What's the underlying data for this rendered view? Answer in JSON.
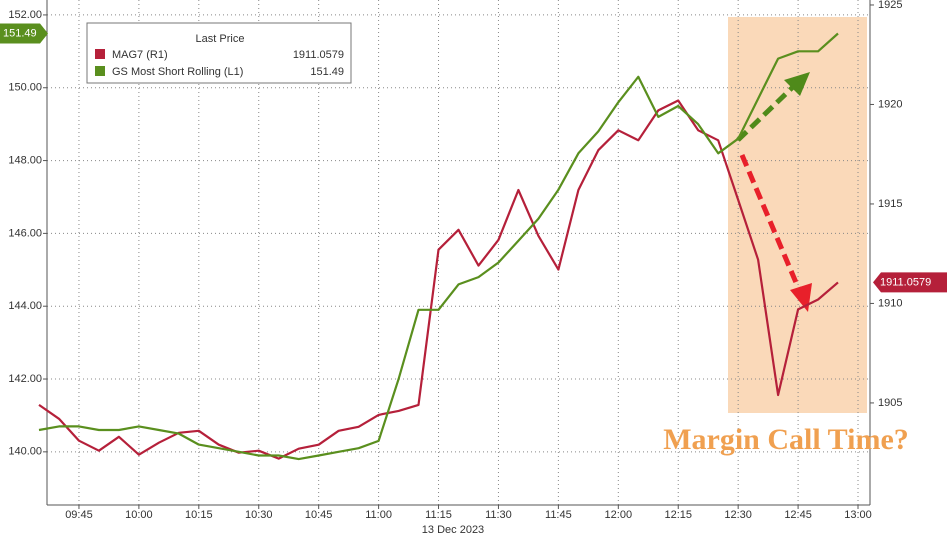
{
  "chart_data": {
    "type": "line",
    "x": [
      "09:35",
      "09:40",
      "09:45",
      "09:50",
      "09:55",
      "10:00",
      "10:05",
      "10:10",
      "10:15",
      "10:20",
      "10:25",
      "10:30",
      "10:35",
      "10:40",
      "10:45",
      "10:50",
      "10:55",
      "11:00",
      "11:05",
      "11:10",
      "11:15",
      "11:20",
      "11:25",
      "11:30",
      "11:35",
      "11:40",
      "11:45",
      "11:50",
      "11:55",
      "12:00",
      "12:05",
      "12:10",
      "12:15",
      "12:20",
      "12:25",
      "12:30",
      "12:35",
      "12:40",
      "12:45",
      "12:50",
      "12:55"
    ],
    "xlabel": "13 Dec 2023",
    "xticks": [
      "09:45",
      "10:00",
      "10:15",
      "10:30",
      "10:45",
      "11:00",
      "11:15",
      "11:30",
      "11:45",
      "12:00",
      "12:15",
      "12:30",
      "12:45",
      "13:00"
    ],
    "xlim": [
      "09:37",
      "13:03"
    ],
    "legend_title": "Last Price",
    "annotation": "Margin Call Time?",
    "series": [
      {
        "name": "MAG7 (R1)",
        "color": "#b5203a",
        "axis": "y2",
        "values": [
          1904.9,
          1904.2,
          1903.1,
          1902.6,
          1903.3,
          1902.4,
          1903.0,
          1903.5,
          1903.6,
          1902.9,
          1902.5,
          1902.6,
          1902.2,
          1902.7,
          1902.9,
          1903.6,
          1903.8,
          1904.4,
          1904.6,
          1904.9,
          1912.7,
          1913.7,
          1911.9,
          1913.2,
          1915.7,
          1913.4,
          1911.7,
          1915.7,
          1917.7,
          1918.7,
          1918.2,
          1919.7,
          1920.2,
          1918.7,
          1918.2,
          1915.2,
          1912.2,
          1905.4,
          1909.7,
          1910.2,
          1911.0579
        ]
      },
      {
        "name": "GS Most Short Rolling (L1)",
        "color": "#5a8f1e",
        "axis": "y",
        "values": [
          140.6,
          140.7,
          140.7,
          140.6,
          140.6,
          140.7,
          140.6,
          140.5,
          140.2,
          140.1,
          140.0,
          139.9,
          139.9,
          139.8,
          139.9,
          140.0,
          140.1,
          140.3,
          142.0,
          143.9,
          143.9,
          144.6,
          144.8,
          145.2,
          145.8,
          146.4,
          147.2,
          148.2,
          148.8,
          149.6,
          150.3,
          149.2,
          149.5,
          149.0,
          148.2,
          148.6,
          149.7,
          150.8,
          151.0,
          151.0,
          151.49
        ]
      }
    ],
    "ylim": [
      138.54,
      152.41
    ],
    "yticks": [
      {
        "value": 140,
        "label": "140.00"
      },
      {
        "value": 142,
        "label": "142.00"
      },
      {
        "value": 144,
        "label": "144.00"
      },
      {
        "value": 146,
        "label": "146.00"
      },
      {
        "value": 148,
        "label": "148.00"
      },
      {
        "value": 150,
        "label": "150.00"
      },
      {
        "value": 152,
        "label": "152.00"
      }
    ],
    "y2lim": [
      1899.87,
      1925.25
    ],
    "y2ticks": [
      1905,
      1910,
      1915,
      1920,
      1925
    ],
    "grid": true
  }
}
